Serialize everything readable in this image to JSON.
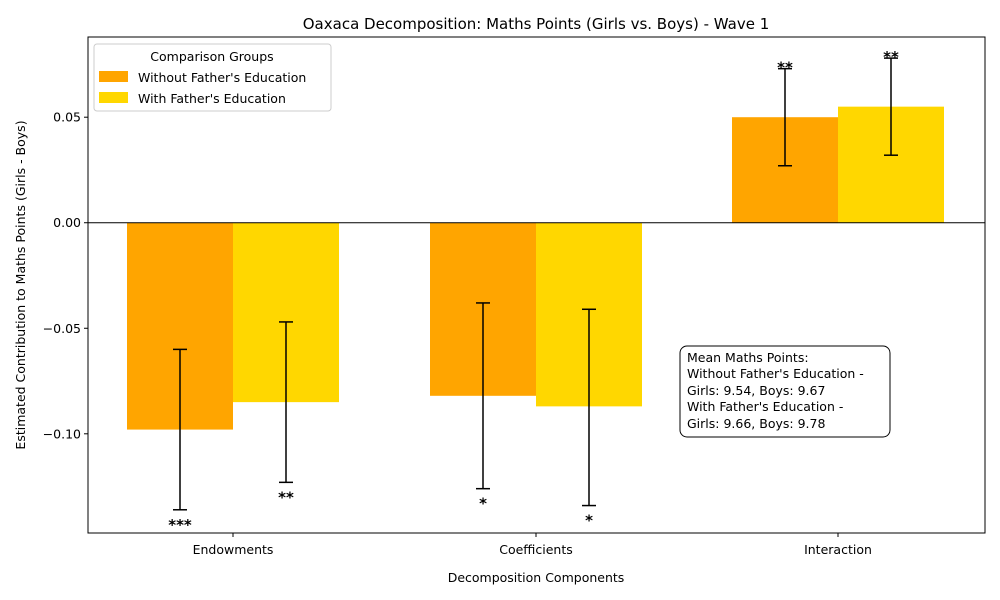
{
  "chart_data": {
    "type": "bar",
    "title": "Oaxaca Decomposition: Maths Points (Girls vs. Boys) - Wave 1",
    "xlabel": "Decomposition Components",
    "ylabel": "Estimated Contribution to Maths Points (Girls - Boys)",
    "categories": [
      "Endowments",
      "Coefficients",
      "Interaction"
    ],
    "ylim": [
      -0.147,
      0.088
    ],
    "yticks": [
      -0.1,
      -0.05,
      0.0,
      0.05
    ],
    "ytick_labels": [
      "−0.10",
      "−0.05",
      "0.00",
      "0.05"
    ],
    "series": [
      {
        "name": "Without Father's Education",
        "color": "#FFA500",
        "values": [
          -0.098,
          -0.082,
          0.05
        ],
        "err_low": [
          -0.136,
          -0.126,
          0.027
        ],
        "err_high": [
          -0.06,
          -0.038,
          0.073
        ],
        "significance": [
          "***",
          "*",
          "**"
        ]
      },
      {
        "name": "With Father's Education",
        "color": "#FFD700",
        "values": [
          -0.085,
          -0.087,
          0.055
        ],
        "err_low": [
          -0.123,
          -0.134,
          0.032
        ],
        "err_high": [
          -0.047,
          -0.041,
          0.078
        ],
        "significance": [
          "**",
          "*",
          "**"
        ]
      }
    ],
    "legend": {
      "title": "Comparison Groups",
      "position": "top-left"
    },
    "annotation": {
      "lines": [
        "Mean Maths Points:",
        "Without Father's Education -",
        "Girls: 9.54, Boys: 9.67",
        "With Father's Education -",
        "Girls: 9.66, Boys: 9.78"
      ]
    },
    "grid": false
  }
}
